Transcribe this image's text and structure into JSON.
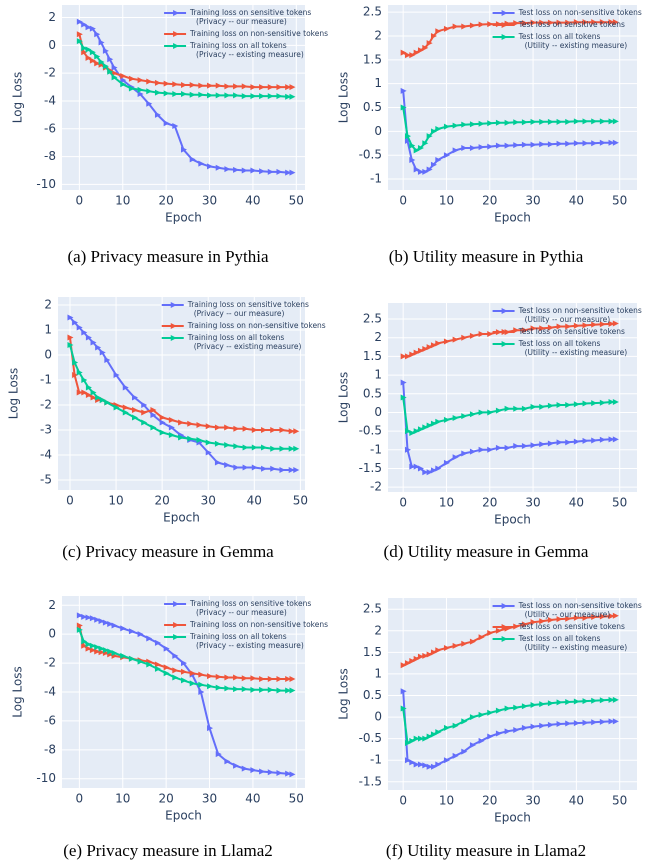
{
  "chart_data": [
    {
      "type": "line",
      "caption": "(a) Privacy measure in Pythia",
      "xlabel": "Epoch",
      "ylabel": "Log Loss",
      "legend": "upper right",
      "grid": true,
      "x": [
        0,
        1,
        2,
        3,
        4,
        5,
        6,
        7,
        8,
        10,
        12,
        14,
        16,
        18,
        20,
        22,
        24,
        26,
        28,
        30,
        32,
        34,
        36,
        38,
        40,
        42,
        44,
        46,
        48,
        49
      ],
      "xlim": [
        -4,
        52
      ],
      "xticks": [
        0,
        10,
        20,
        30,
        40,
        50
      ],
      "ylim": [
        -10.4,
        2.9
      ],
      "yticks": [
        2,
        0,
        -2,
        -4,
        -6,
        -8,
        -10
      ],
      "series": [
        {
          "name": "Training loss on sensitive tokens\n(Privacy -- our measure)",
          "color": "#636efa",
          "values": [
            1.7,
            1.5,
            1.3,
            1.2,
            0.8,
            0.2,
            -0.4,
            -1.0,
            -1.6,
            -2.5,
            -3.0,
            -3.5,
            -4.2,
            -5.0,
            -5.6,
            -5.8,
            -7.5,
            -8.2,
            -8.5,
            -8.7,
            -8.8,
            -8.9,
            -8.95,
            -9.0,
            -9.0,
            -9.05,
            -9.1,
            -9.1,
            -9.15,
            -9.15
          ]
        },
        {
          "name": "Training loss on non-sensitive tokens",
          "color": "#ef553b",
          "values": [
            0.8,
            -0.5,
            -0.9,
            -1.1,
            -1.3,
            -1.4,
            -1.6,
            -1.8,
            -2.0,
            -2.2,
            -2.4,
            -2.5,
            -2.6,
            -2.7,
            -2.75,
            -2.8,
            -2.85,
            -2.85,
            -2.9,
            -2.9,
            -2.9,
            -2.95,
            -2.95,
            -2.95,
            -3.0,
            -3.0,
            -3.0,
            -3.0,
            -3.0,
            -3.0
          ]
        },
        {
          "name": "Training loss on all tokens\n(Privacy -- existing measure)",
          "color": "#00cc96",
          "values": [
            0.3,
            -0.2,
            -0.3,
            -0.5,
            -0.8,
            -1.2,
            -1.5,
            -1.9,
            -2.3,
            -2.8,
            -3.1,
            -3.2,
            -3.3,
            -3.4,
            -3.45,
            -3.5,
            -3.5,
            -3.55,
            -3.55,
            -3.6,
            -3.6,
            -3.6,
            -3.6,
            -3.65,
            -3.65,
            -3.65,
            -3.65,
            -3.65,
            -3.7,
            -3.7
          ]
        }
      ]
    },
    {
      "type": "line",
      "caption": "(b) Utility measure in Pythia",
      "xlabel": "Epoch",
      "ylabel": "Log Loss",
      "legend": "upper right",
      "grid": true,
      "x": [
        0,
        1,
        2,
        3,
        4,
        5,
        6,
        7,
        8,
        10,
        12,
        14,
        16,
        18,
        20,
        22,
        24,
        26,
        28,
        30,
        32,
        34,
        36,
        38,
        40,
        42,
        44,
        46,
        48,
        49
      ],
      "xlim": [
        -3.5,
        54
      ],
      "xticks": [
        0,
        10,
        20,
        30,
        40,
        50
      ],
      "ylim": [
        -1.23,
        2.65
      ],
      "yticks": [
        2.5,
        2,
        1.5,
        1,
        0.5,
        0,
        -0.5,
        -1
      ],
      "series": [
        {
          "name": "Test loss on non-sensitive tokens",
          "color": "#636efa",
          "values": [
            0.85,
            -0.2,
            -0.6,
            -0.8,
            -0.85,
            -0.85,
            -0.8,
            -0.7,
            -0.6,
            -0.5,
            -0.4,
            -0.35,
            -0.35,
            -0.33,
            -0.32,
            -0.3,
            -0.3,
            -0.29,
            -0.28,
            -0.28,
            -0.27,
            -0.27,
            -0.26,
            -0.26,
            -0.25,
            -0.25,
            -0.25,
            -0.24,
            -0.24,
            -0.24
          ]
        },
        {
          "name": "Test loss on sensitive tokens",
          "color": "#ef553b",
          "values": [
            1.65,
            1.6,
            1.6,
            1.65,
            1.7,
            1.75,
            1.85,
            2.0,
            2.1,
            2.15,
            2.2,
            2.2,
            2.22,
            2.24,
            2.25,
            2.25,
            2.26,
            2.27,
            2.27,
            2.28,
            2.28,
            2.28,
            2.28,
            2.28,
            2.29,
            2.29,
            2.29,
            2.29,
            2.29,
            2.29
          ]
        },
        {
          "name": "Test loss on all tokens\n(Utility -- existing measure)",
          "color": "#00cc96",
          "values": [
            0.5,
            -0.1,
            -0.3,
            -0.4,
            -0.35,
            -0.25,
            -0.1,
            0.0,
            0.05,
            0.1,
            0.12,
            0.14,
            0.15,
            0.16,
            0.17,
            0.18,
            0.18,
            0.19,
            0.19,
            0.2,
            0.2,
            0.2,
            0.2,
            0.2,
            0.21,
            0.21,
            0.21,
            0.21,
            0.21,
            0.21
          ]
        }
      ]
    },
    {
      "type": "line",
      "caption": "(c) Privacy measure in Gemma",
      "xlabel": "Epoch",
      "ylabel": "Log Loss",
      "legend": "upper right",
      "grid": true,
      "x": [
        0,
        1,
        2,
        3,
        4,
        5,
        6,
        7,
        8,
        10,
        12,
        14,
        16,
        18,
        20,
        22,
        24,
        26,
        28,
        30,
        32,
        34,
        36,
        38,
        40,
        42,
        44,
        46,
        48,
        49
      ],
      "xlim": [
        -2.6,
        51
      ],
      "xticks": [
        0,
        10,
        20,
        30,
        40,
        50
      ],
      "ylim": [
        -5.4,
        2.32
      ],
      "yticks": [
        2,
        1,
        0,
        -1,
        -2,
        -3,
        -4,
        -5
      ],
      "series": [
        {
          "name": "Training loss on sensitive tokens\n(Privacy -- our measure)",
          "color": "#636efa",
          "values": [
            1.5,
            1.3,
            1.1,
            0.9,
            0.7,
            0.5,
            0.3,
            0.1,
            -0.2,
            -0.8,
            -1.3,
            -1.7,
            -2.0,
            -2.4,
            -2.7,
            -2.9,
            -3.2,
            -3.4,
            -3.5,
            -3.9,
            -4.3,
            -4.4,
            -4.5,
            -4.5,
            -4.5,
            -4.55,
            -4.55,
            -4.6,
            -4.6,
            -4.6
          ]
        },
        {
          "name": "Training loss on non-sensitive tokens",
          "color": "#ef553b",
          "values": [
            0.7,
            -0.8,
            -1.5,
            -1.5,
            -1.6,
            -1.7,
            -1.8,
            -1.8,
            -1.9,
            -2.0,
            -2.1,
            -2.2,
            -2.3,
            -2.2,
            -2.5,
            -2.6,
            -2.7,
            -2.75,
            -2.8,
            -2.85,
            -2.9,
            -2.9,
            -2.95,
            -2.95,
            -3.0,
            -3.0,
            -3.0,
            -3.0,
            -3.05,
            -3.05
          ]
        },
        {
          "name": "Training loss on all tokens\n(Privacy -- existing measure)",
          "color": "#00cc96",
          "values": [
            0.4,
            -0.3,
            -0.7,
            -1.0,
            -1.3,
            -1.5,
            -1.7,
            -1.8,
            -1.9,
            -2.1,
            -2.3,
            -2.5,
            -2.7,
            -2.9,
            -3.1,
            -3.2,
            -3.3,
            -3.35,
            -3.4,
            -3.5,
            -3.55,
            -3.6,
            -3.65,
            -3.7,
            -3.7,
            -3.7,
            -3.75,
            -3.75,
            -3.75,
            -3.75
          ]
        }
      ]
    },
    {
      "type": "line",
      "caption": "(d) Utility measure in Gemma",
      "xlabel": "Epoch",
      "ylabel": "Log Loss",
      "legend": "upper right",
      "grid": true,
      "x": [
        0,
        1,
        2,
        3,
        4,
        5,
        6,
        7,
        8,
        10,
        12,
        14,
        16,
        18,
        20,
        22,
        24,
        26,
        28,
        30,
        32,
        34,
        36,
        38,
        40,
        42,
        44,
        46,
        48,
        49
      ],
      "xlim": [
        -3.5,
        54
      ],
      "xticks": [
        0,
        10,
        20,
        30,
        40,
        50
      ],
      "ylim": [
        -2.13,
        2.93
      ],
      "yticks": [
        2.5,
        2,
        1.5,
        1,
        0.5,
        0,
        -0.5,
        -1,
        -1.5,
        -2
      ],
      "series": [
        {
          "name": "Test loss on non-sensitive tokens\n(Utility -- our measure)",
          "color": "#636efa",
          "values": [
            0.8,
            -1.0,
            -1.45,
            -1.45,
            -1.5,
            -1.6,
            -1.6,
            -1.55,
            -1.5,
            -1.35,
            -1.2,
            -1.1,
            -1.05,
            -1.0,
            -1.0,
            -0.95,
            -0.95,
            -0.9,
            -0.9,
            -0.88,
            -0.85,
            -0.83,
            -0.8,
            -0.8,
            -0.78,
            -0.76,
            -0.75,
            -0.73,
            -0.72,
            -0.72
          ]
        },
        {
          "name": "Test loss on sensitive tokens",
          "color": "#ef553b",
          "values": [
            1.5,
            1.5,
            1.55,
            1.6,
            1.65,
            1.7,
            1.75,
            1.8,
            1.85,
            1.9,
            1.95,
            2.0,
            2.05,
            2.1,
            2.1,
            2.15,
            2.15,
            2.2,
            2.2,
            2.25,
            2.25,
            2.27,
            2.3,
            2.3,
            2.32,
            2.33,
            2.35,
            2.36,
            2.37,
            2.38
          ]
        },
        {
          "name": "Test loss on all tokens\n(Utility -- existing measure)",
          "color": "#00cc96",
          "values": [
            0.4,
            -0.5,
            -0.55,
            -0.5,
            -0.45,
            -0.4,
            -0.35,
            -0.3,
            -0.25,
            -0.2,
            -0.15,
            -0.1,
            -0.05,
            0.0,
            0.0,
            0.05,
            0.1,
            0.1,
            0.1,
            0.15,
            0.15,
            0.18,
            0.2,
            0.2,
            0.22,
            0.24,
            0.25,
            0.26,
            0.28,
            0.28
          ]
        }
      ]
    },
    {
      "type": "line",
      "caption": "(e) Privacy measure in Llama2",
      "xlabel": "Epoch",
      "ylabel": "Log Loss",
      "legend": "upper right",
      "grid": true,
      "x": [
        0,
        1,
        2,
        3,
        4,
        5,
        6,
        7,
        8,
        10,
        12,
        14,
        16,
        18,
        20,
        22,
        24,
        26,
        28,
        30,
        32,
        34,
        36,
        38,
        40,
        42,
        44,
        46,
        48,
        49
      ],
      "xlim": [
        -4,
        52
      ],
      "xticks": [
        0,
        10,
        20,
        30,
        40,
        50
      ],
      "ylim": [
        -10.64,
        2.64
      ],
      "yticks": [
        2,
        0,
        -2,
        -4,
        -6,
        -8,
        -10
      ],
      "series": [
        {
          "name": "Training loss on sensitive tokens\n(Privacy -- our measure)",
          "color": "#636efa",
          "values": [
            1.3,
            1.2,
            1.15,
            1.1,
            1.0,
            0.9,
            0.8,
            0.7,
            0.6,
            0.4,
            0.2,
            0.0,
            -0.3,
            -0.6,
            -1.0,
            -1.5,
            -2.0,
            -2.8,
            -4.0,
            -6.5,
            -8.3,
            -8.8,
            -9.1,
            -9.3,
            -9.4,
            -9.5,
            -9.55,
            -9.6,
            -9.65,
            -9.7
          ]
        },
        {
          "name": "Training loss on non-sensitive tokens",
          "color": "#ef553b",
          "values": [
            0.6,
            -0.8,
            -1.0,
            -1.1,
            -1.2,
            -1.25,
            -1.3,
            -1.4,
            -1.5,
            -1.6,
            -1.7,
            -1.8,
            -1.9,
            -2.1,
            -2.3,
            -2.5,
            -2.6,
            -2.7,
            -2.8,
            -2.9,
            -2.95,
            -3.0,
            -3.0,
            -3.05,
            -3.05,
            -3.1,
            -3.1,
            -3.1,
            -3.1,
            -3.1
          ]
        },
        {
          "name": "Training loss on all tokens\n(Privacy -- existing measure)",
          "color": "#00cc96",
          "values": [
            0.3,
            -0.5,
            -0.7,
            -0.8,
            -0.9,
            -1.0,
            -1.1,
            -1.2,
            -1.3,
            -1.5,
            -1.7,
            -1.9,
            -2.1,
            -2.4,
            -2.7,
            -3.0,
            -3.2,
            -3.4,
            -3.5,
            -3.6,
            -3.7,
            -3.75,
            -3.8,
            -3.8,
            -3.85,
            -3.85,
            -3.85,
            -3.9,
            -3.9,
            -3.9
          ]
        }
      ]
    },
    {
      "type": "line",
      "caption": "(f) Utility measure in Llama2",
      "xlabel": "Epoch",
      "ylabel": "Log Loss",
      "legend": "upper right",
      "grid": true,
      "x": [
        0,
        1,
        2,
        3,
        4,
        5,
        6,
        7,
        8,
        10,
        12,
        14,
        16,
        18,
        20,
        22,
        24,
        26,
        28,
        30,
        32,
        34,
        36,
        38,
        40,
        42,
        44,
        46,
        48,
        49
      ],
      "xlim": [
        -3.5,
        54
      ],
      "xticks": [
        0,
        10,
        20,
        30,
        40,
        50
      ],
      "ylim": [
        -1.69,
        2.76
      ],
      "yticks": [
        2.5,
        2,
        1.5,
        1,
        0.5,
        0,
        -0.5,
        -1,
        -1.5
      ],
      "series": [
        {
          "name": "Test loss on non-sensitive tokens\n(Utility -- our measure)",
          "color": "#636efa",
          "values": [
            0.6,
            -1.0,
            -1.05,
            -1.1,
            -1.1,
            -1.12,
            -1.15,
            -1.15,
            -1.1,
            -1.0,
            -0.9,
            -0.8,
            -0.65,
            -0.55,
            -0.45,
            -0.38,
            -0.33,
            -0.3,
            -0.25,
            -0.22,
            -0.2,
            -0.18,
            -0.16,
            -0.15,
            -0.14,
            -0.13,
            -0.12,
            -0.11,
            -0.1,
            -0.1
          ]
        },
        {
          "name": "Test loss on sensitive tokens",
          "color": "#ef553b",
          "values": [
            1.2,
            1.25,
            1.3,
            1.35,
            1.4,
            1.42,
            1.45,
            1.5,
            1.55,
            1.6,
            1.65,
            1.7,
            1.75,
            1.85,
            1.95,
            2.0,
            2.05,
            2.1,
            2.15,
            2.2,
            2.22,
            2.25,
            2.27,
            2.28,
            2.3,
            2.3,
            2.32,
            2.33,
            2.34,
            2.35
          ]
        },
        {
          "name": "Test loss on all tokens\n(Utility -- existing measure)",
          "color": "#00cc96",
          "values": [
            0.2,
            -0.6,
            -0.55,
            -0.5,
            -0.5,
            -0.5,
            -0.45,
            -0.4,
            -0.35,
            -0.25,
            -0.2,
            -0.1,
            0.0,
            0.05,
            0.1,
            0.15,
            0.2,
            0.22,
            0.25,
            0.28,
            0.3,
            0.32,
            0.34,
            0.35,
            0.36,
            0.37,
            0.38,
            0.39,
            0.4,
            0.4
          ]
        }
      ]
    }
  ]
}
